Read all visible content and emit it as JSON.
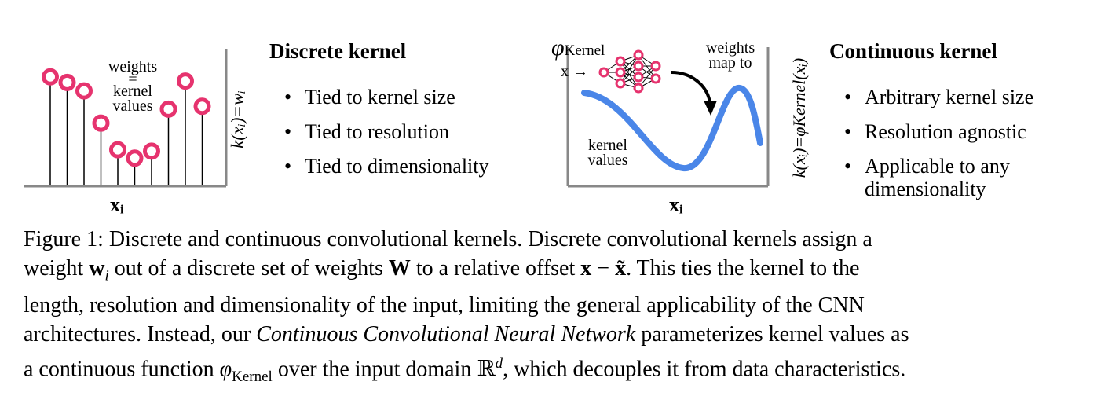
{
  "left_panel": {
    "label_weights": "weights",
    "label_equals": "=",
    "label_kernel": "kernel",
    "label_values": "values",
    "x_label": "xᵢ",
    "y_label": "k(xᵢ)=wᵢ",
    "stem_heights": [
      0.78,
      0.74,
      0.68,
      0.45,
      0.26,
      0.2,
      0.25,
      0.55,
      0.75,
      0.57
    ],
    "marker_color": "#e6336e"
  },
  "discrete": {
    "title": "Discrete kernel",
    "bullets": [
      "Tied to kernel size",
      "Tied to resolution",
      "Tied to dimensionality"
    ]
  },
  "right_panel": {
    "phi_label": "φ",
    "phi_sub": "Kernel",
    "x_arrow": "x →",
    "weights_map_1": "weights",
    "weights_map_2": "map to",
    "kernel_label": "kernel",
    "values_label": "values",
    "x_label": "xᵢ",
    "y_label": "k(xᵢ)=φKernel(xᵢ)",
    "curve_color": "#4a86e8",
    "node_color": "#e6336e"
  },
  "continuous": {
    "title": "Continuous kernel",
    "bullets": [
      "Arbitrary kernel size",
      "Resolution agnostic",
      "Applicable to any"
    ],
    "bullet3_cont": "dimensionality"
  },
  "caption": {
    "line1": "Figure 1: Discrete and continuous convolutional kernels. Discrete convolutional kernels assign a",
    "line2_a": "weight ",
    "line2_w": "w",
    "line2_i": "i",
    "line2_b": " out of a discrete set of weights ",
    "line2_W": "W",
    "line2_c": " to a relative offset ",
    "line2_x": "x",
    "line2_minus": " − ",
    "line2_xt": "x̃",
    "line2_d": ". This ties the kernel to the",
    "line3": "length, resolution and dimensionality of the input, limiting the general applicability of the CNN",
    "line4_a": "architectures. Instead, our ",
    "line4_em": "Continuous Convolutional Neural Network",
    "line4_b": " parameterizes kernel values as",
    "line5_a": "a continuous function ",
    "line5_phi": "φ",
    "line5_sub": "Kernel",
    "line5_b": " over the input domain ",
    "line5_R": "ℝ",
    "line5_d": "d",
    "line5_c": ", which decouples it from data characteristics."
  }
}
